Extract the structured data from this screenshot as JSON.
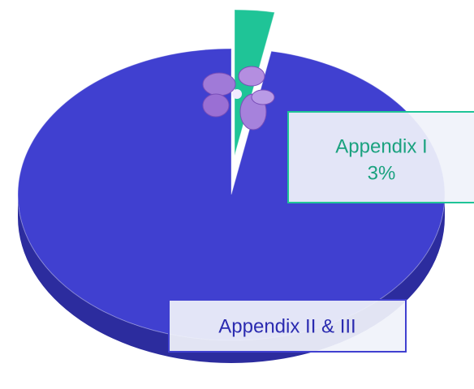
{
  "chart_data": {
    "type": "pie",
    "categories": [
      "Appendix I",
      "Appendix II & III"
    ],
    "values": [
      3,
      97
    ],
    "value_labels": [
      "3%",
      null
    ],
    "colors": [
      "#1fc497",
      "#4040d0"
    ]
  }
}
